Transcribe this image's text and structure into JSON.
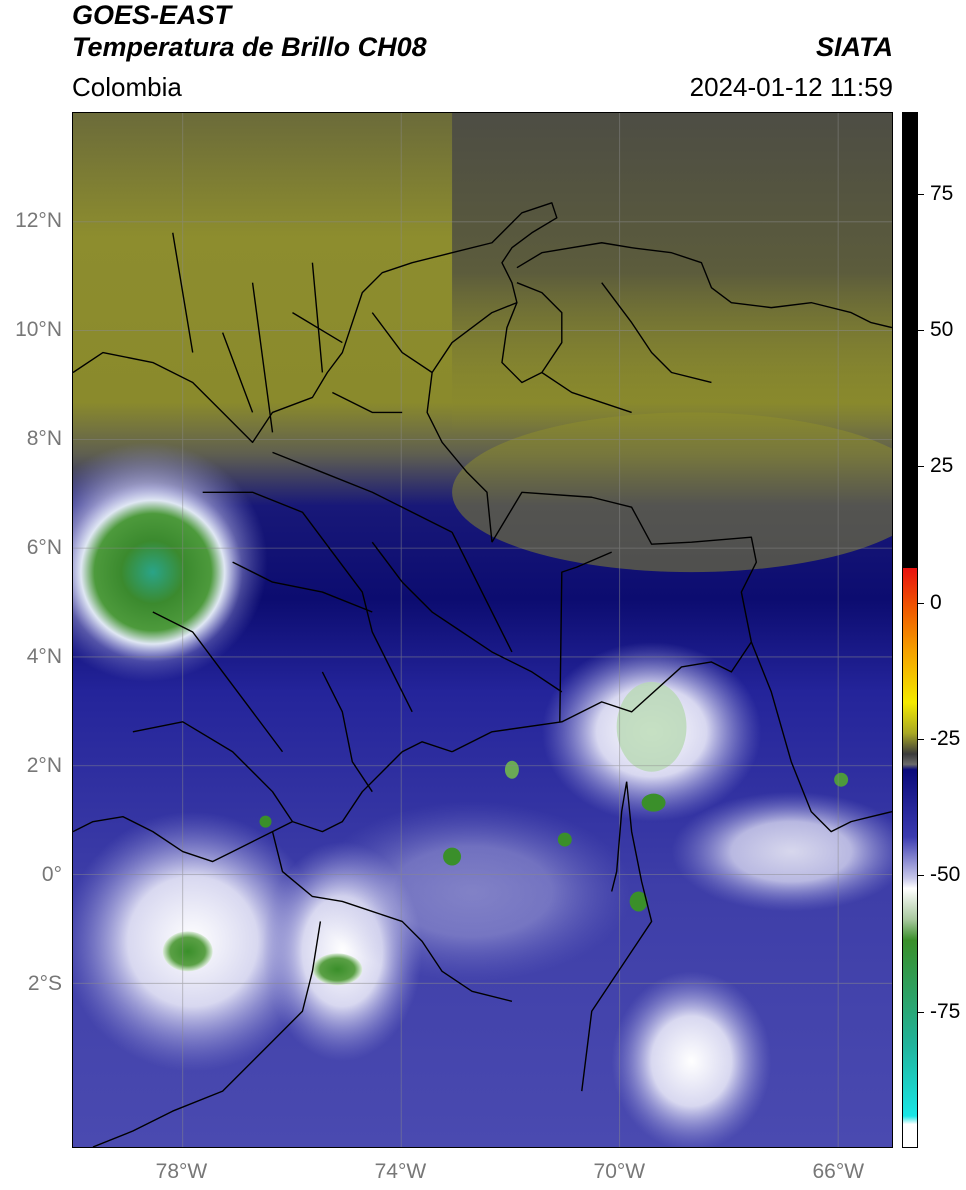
{
  "header": {
    "line1": "GOES-EAST",
    "line2": "Temperatura de Brillo CH08",
    "org": "SIATA",
    "region": "Colombia",
    "timestamp": "2024-01-12 11:59"
  },
  "map": {
    "lat_range": [
      -5,
      14
    ],
    "lon_range": [
      -80,
      -65
    ],
    "lat_labels": [
      {
        "lat": 12,
        "text": "12°N"
      },
      {
        "lat": 10,
        "text": "10°N"
      },
      {
        "lat": 8,
        "text": "8°N"
      },
      {
        "lat": 6,
        "text": "6°N"
      },
      {
        "lat": 4,
        "text": "4°N"
      },
      {
        "lat": 2,
        "text": "2°N"
      },
      {
        "lat": 0,
        "text": "0°"
      },
      {
        "lat": -2,
        "text": "2°S"
      }
    ],
    "lon_labels": [
      {
        "lon": -78,
        "text": "78°W"
      },
      {
        "lon": -74,
        "text": "74°W"
      },
      {
        "lon": -70,
        "text": "70°W"
      },
      {
        "lon": -66,
        "text": "66°W"
      }
    ]
  },
  "colorbar": {
    "range": [
      -100,
      90
    ],
    "ticks": [
      {
        "value": 75,
        "text": "75"
      },
      {
        "value": 50,
        "text": "50"
      },
      {
        "value": 25,
        "text": "25"
      },
      {
        "value": 0,
        "text": "0"
      },
      {
        "value": -25,
        "text": "-25"
      },
      {
        "value": -50,
        "text": "-50"
      },
      {
        "value": -75,
        "text": "-75"
      }
    ],
    "colors": {
      "black": "#000000",
      "red": "#e8110f",
      "orange": "#f58a00",
      "yellow": "#f4ea00",
      "olive": "#a8a824",
      "gray": "#3b3b3b",
      "navy": "#0a0a7a",
      "blue": "#3b3bb0",
      "lavender": "#c7c7ea",
      "white": "#ffffff",
      "green": "#3a8f2a",
      "teal": "#21b39a",
      "cyan": "#19e6e6"
    }
  }
}
